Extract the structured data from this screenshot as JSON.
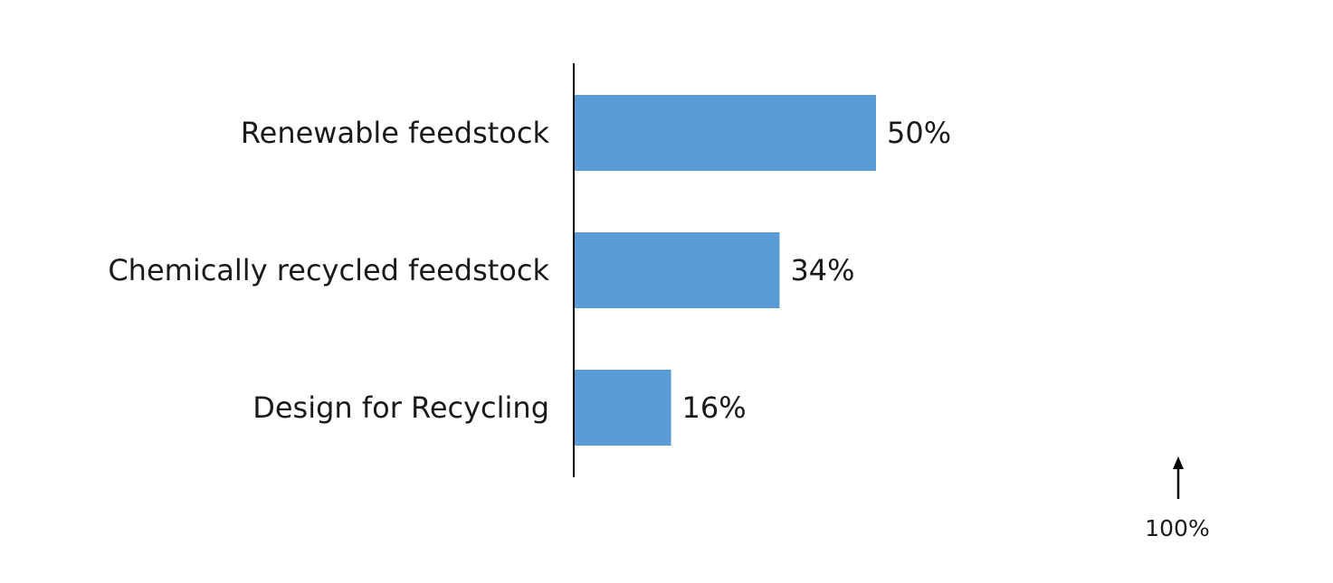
{
  "chart_data": {
    "type": "bar",
    "orientation": "horizontal",
    "categories": [
      "Renewable feedstock",
      "Chemically recycled feedstock",
      "Design for Recycling"
    ],
    "values": [
      50,
      34,
      16
    ],
    "value_labels": [
      "50%",
      "34%",
      "16%"
    ],
    "unit": "%",
    "title": "",
    "xlabel": "",
    "ylabel": "",
    "xlim": [
      0,
      100
    ],
    "grid": false,
    "legend": "none",
    "bar_color": "#5b9bd5",
    "annotation": {
      "label": "100%",
      "symbol": "up-arrow"
    }
  }
}
